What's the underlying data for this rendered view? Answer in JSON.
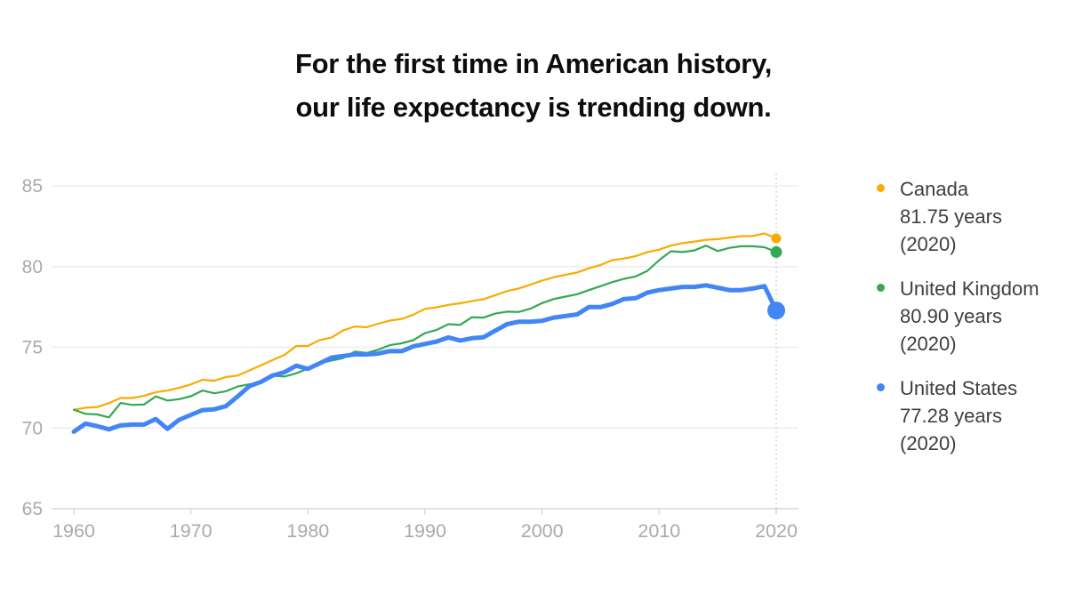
{
  "title": {
    "line1": "For the first time in American history,",
    "line2": "our life expectancy is trending down."
  },
  "legend": {
    "items": [
      {
        "name": "Canada",
        "value": "81.75 years",
        "year": "(2020)",
        "color": "#F9AB00"
      },
      {
        "name": "United Kingdom",
        "value": "80.90 years",
        "year": "(2020)",
        "color": "#34A853"
      },
      {
        "name": "United States",
        "value": "77.28 years",
        "year": "(2020)",
        "color": "#4285F4"
      }
    ]
  },
  "chart_data": {
    "type": "line",
    "title": "",
    "xlabel": "",
    "ylabel": "",
    "x_start": 1960,
    "x_end": 2020,
    "x_step": 1,
    "x_ticks": [
      1960,
      1970,
      1980,
      1990,
      2000,
      2010,
      2020
    ],
    "y_ticks": [
      65,
      70,
      75,
      80,
      85
    ],
    "ylim": [
      65,
      85
    ],
    "grid": true,
    "legend_position": "right",
    "annotation_line_x": 2020,
    "tick_color": "#aaaaaa",
    "grid_color": "#ededed",
    "axis_color": "#d9d9d9",
    "series": [
      {
        "name": "Canada",
        "color": "#F9AB00",
        "line_width": 2.2,
        "dot_radius": 5.5,
        "end_value": 81.75,
        "values": [
          71.13,
          71.26,
          71.3,
          71.54,
          71.86,
          71.86,
          71.99,
          72.21,
          72.32,
          72.49,
          72.7,
          72.99,
          72.93,
          73.16,
          73.25,
          73.57,
          73.89,
          74.21,
          74.53,
          75.08,
          75.08,
          75.45,
          75.6,
          76.04,
          76.29,
          76.24,
          76.46,
          76.66,
          76.76,
          77.02,
          77.38,
          77.48,
          77.63,
          77.73,
          77.86,
          77.98,
          78.23,
          78.48,
          78.64,
          78.88,
          79.13,
          79.34,
          79.49,
          79.64,
          79.89,
          80.1,
          80.4,
          80.5,
          80.65,
          80.9,
          81.05,
          81.3,
          81.45,
          81.55,
          81.66,
          81.7,
          81.8,
          81.88,
          81.9,
          82.05,
          81.75
        ]
      },
      {
        "name": "United Kingdom",
        "color": "#34A853",
        "line_width": 2.2,
        "dot_radius": 6.5,
        "end_value": 80.9,
        "values": [
          71.13,
          70.88,
          70.84,
          70.66,
          71.55,
          71.43,
          71.46,
          71.96,
          71.7,
          71.79,
          71.97,
          72.32,
          72.15,
          72.28,
          72.57,
          72.71,
          72.85,
          73.24,
          73.19,
          73.39,
          73.68,
          74.01,
          74.18,
          74.33,
          74.73,
          74.65,
          74.85,
          75.13,
          75.25,
          75.44,
          75.88,
          76.08,
          76.43,
          76.39,
          76.86,
          76.84,
          77.09,
          77.21,
          77.19,
          77.39,
          77.74,
          77.99,
          78.14,
          78.29,
          78.54,
          78.79,
          79.04,
          79.24,
          79.39,
          79.74,
          80.4,
          80.95,
          80.9,
          81.0,
          81.3,
          80.96,
          81.16,
          81.26,
          81.26,
          81.2,
          80.9
        ]
      },
      {
        "name": "United States",
        "color": "#4285F4",
        "line_width": 5,
        "dot_radius": 10,
        "end_value": 77.28,
        "values": [
          69.77,
          70.27,
          70.12,
          69.92,
          70.17,
          70.21,
          70.21,
          70.56,
          69.95,
          70.51,
          70.81,
          71.11,
          71.16,
          71.36,
          71.96,
          72.6,
          72.86,
          73.26,
          73.46,
          73.86,
          73.66,
          74.01,
          74.36,
          74.46,
          74.56,
          74.56,
          74.61,
          74.77,
          74.76,
          75.06,
          75.21,
          75.36,
          75.61,
          75.42,
          75.56,
          75.62,
          76.03,
          76.43,
          76.58,
          76.58,
          76.64,
          76.84,
          76.94,
          77.04,
          77.49,
          77.49,
          77.69,
          77.99,
          78.04,
          78.39,
          78.54,
          78.64,
          78.74,
          78.74,
          78.84,
          78.69,
          78.54,
          78.54,
          78.64,
          78.79,
          77.28
        ]
      }
    ]
  }
}
